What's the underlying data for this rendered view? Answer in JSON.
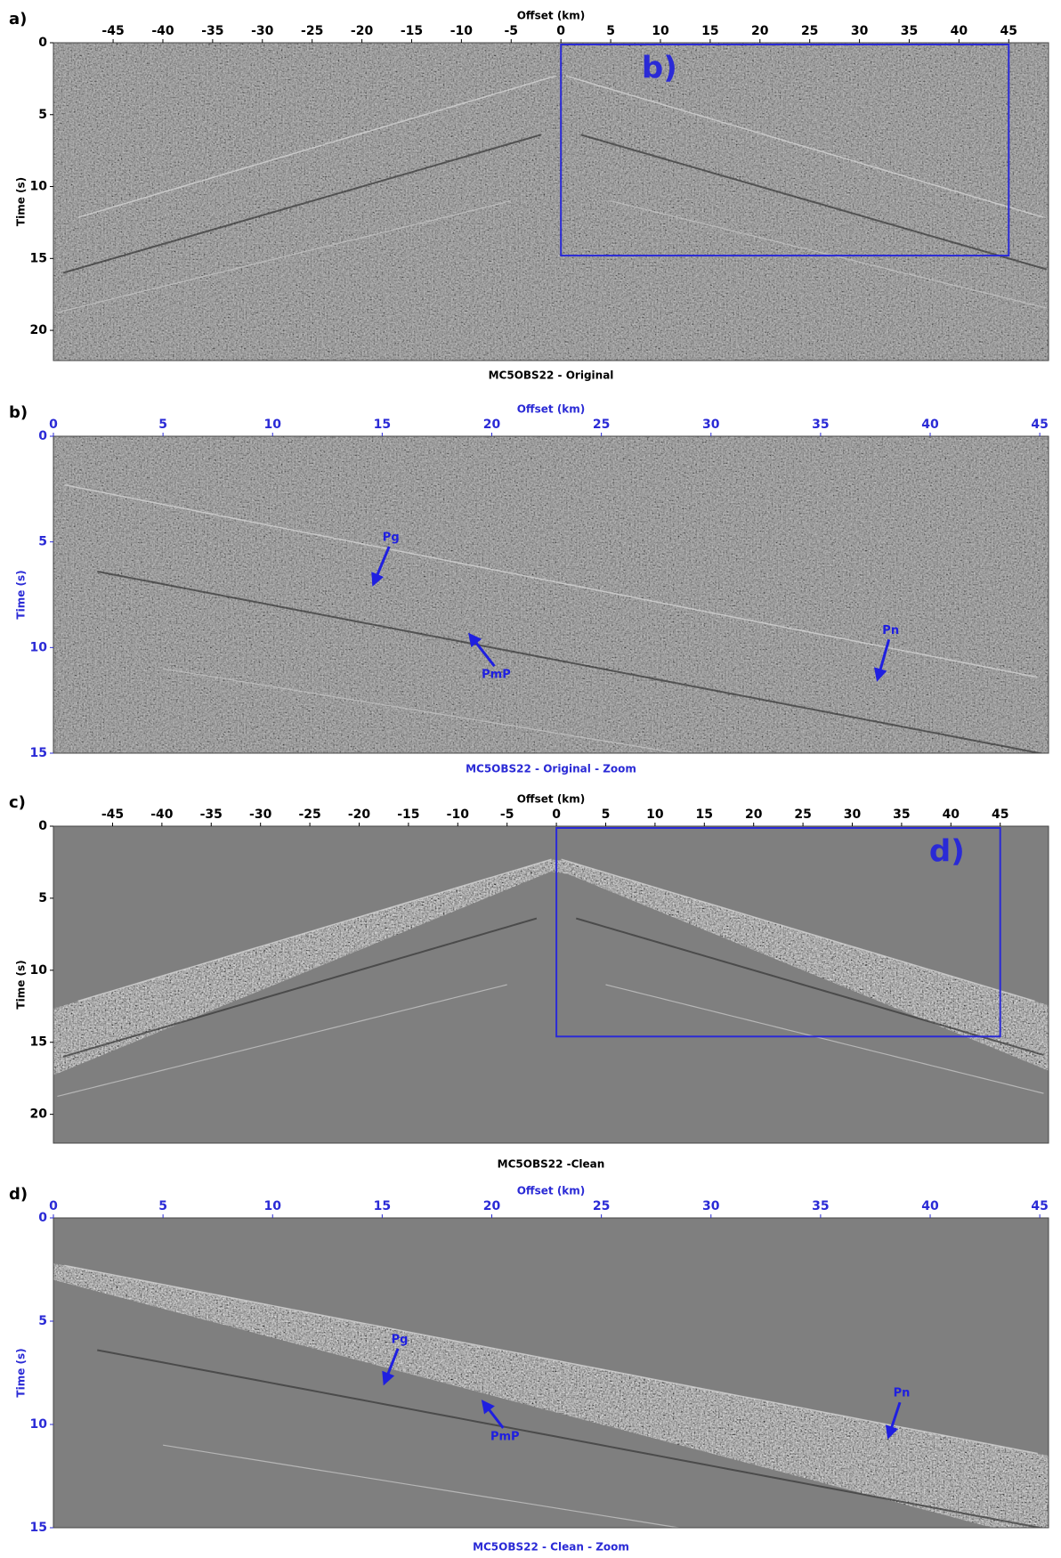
{
  "chart_data": [
    {
      "type": "seismic",
      "label": "a)",
      "title": "MC5OBS22 - Original",
      "xlabel": "Offset (km)",
      "ylabel": "Time (s)",
      "text_color": "#000000",
      "xlim": [
        -51,
        49
      ],
      "ylim": [
        0,
        22.1
      ],
      "xticks": [
        -45,
        -40,
        -35,
        -30,
        -25,
        -20,
        -15,
        -10,
        -5,
        0,
        5,
        10,
        15,
        20,
        25,
        30,
        35,
        40,
        45
      ],
      "yticks": [
        0,
        5,
        10,
        15,
        20
      ],
      "box": {
        "label": "b)",
        "xlim": [
          0,
          45
        ],
        "ylim": [
          0,
          14.8
        ],
        "color": "#2a2ad6"
      }
    },
    {
      "type": "seismic",
      "label": "b)",
      "title": "MC5OBS22 - Original - Zoom",
      "xlabel": "Offset (km)",
      "ylabel": "Time (s)",
      "text_color": "#2a2ad6",
      "xlim": [
        0,
        45.4
      ],
      "ylim": [
        0,
        15
      ],
      "xticks": [
        0,
        5,
        10,
        15,
        20,
        25,
        30,
        35,
        40,
        45
      ],
      "yticks": [
        0,
        5,
        10,
        15
      ],
      "annotations": [
        {
          "text": "Pg",
          "x": 15.4,
          "y": 4.8,
          "tip_x": 14.6,
          "tip_y": 7.0
        },
        {
          "text": "PmP",
          "x": 20.2,
          "y": 11.3,
          "tip_x": 19.0,
          "tip_y": 9.4
        },
        {
          "text": "Pn",
          "x": 38.2,
          "y": 9.2,
          "tip_x": 37.6,
          "tip_y": 11.5
        }
      ]
    },
    {
      "type": "seismic",
      "label": "c)",
      "title": "MC5OBS22 -Clean",
      "xlabel": "Offset (km)",
      "ylabel": "Time (s)",
      "text_color": "#000000",
      "xlim": [
        -51,
        49.9
      ],
      "ylim": [
        0,
        22
      ],
      "xticks": [
        -45,
        -40,
        -35,
        -30,
        -25,
        -20,
        -15,
        -10,
        -5,
        0,
        5,
        10,
        15,
        20,
        25,
        30,
        35,
        40,
        45
      ],
      "yticks": [
        0,
        5,
        10,
        15,
        20
      ],
      "box": {
        "label": "d)",
        "xlim": [
          0,
          45
        ],
        "ylim": [
          0,
          14.6
        ],
        "color": "#2a2ad6"
      }
    },
    {
      "type": "seismic",
      "label": "d)",
      "title": "MC5OBS22 - Clean - Zoom",
      "xlabel": "Offset (km)",
      "ylabel": "Time (s)",
      "text_color": "#2a2ad6",
      "xlim": [
        0,
        45.4
      ],
      "ylim": [
        0,
        15
      ],
      "xticks": [
        0,
        5,
        10,
        15,
        20,
        25,
        30,
        35,
        40,
        45
      ],
      "yticks": [
        0,
        5,
        10,
        15
      ],
      "annotations": [
        {
          "text": "Pg",
          "x": 15.8,
          "y": 5.9,
          "tip_x": 15.1,
          "tip_y": 8.0
        },
        {
          "text": "PmP",
          "x": 20.6,
          "y": 10.6,
          "tip_x": 19.6,
          "tip_y": 8.9
        },
        {
          "text": "Pn",
          "x": 38.7,
          "y": 8.5,
          "tip_x": 38.1,
          "tip_y": 10.6
        }
      ]
    }
  ]
}
